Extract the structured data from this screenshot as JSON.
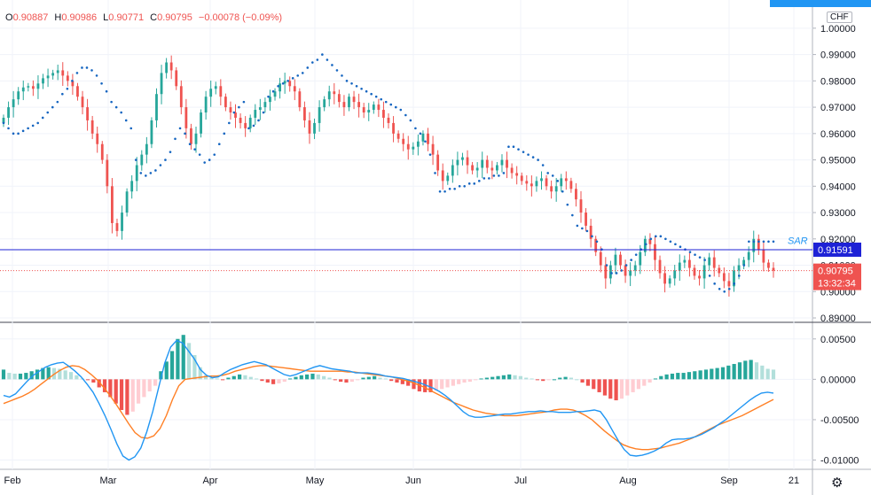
{
  "header": {
    "open_label": "O",
    "open": "0.90887",
    "high_label": "H",
    "high": "0.90986",
    "low_label": "L",
    "low": "0.90771",
    "close_label": "C",
    "close": "0.90795",
    "change": "−0.00078 (−0.09%)"
  },
  "currency_badge": "CHF",
  "settings_icon": "gear-icon",
  "colors": {
    "up": "#26a69a",
    "down": "#ef5350",
    "sar": "#1565c0",
    "hline": "#1e22d6",
    "macd": "#2196f3",
    "signal": "#ff7f24",
    "hist_up_strong": "#26a69a",
    "hist_up_weak": "#b2dfdb",
    "hist_down_strong": "#ef5350",
    "hist_down_weak": "#ffcdd2"
  },
  "chart_data": [
    {
      "type": "candlestick",
      "title": "",
      "ylim": [
        0.889,
        1.006
      ],
      "y_ticks": [
        "1.00000",
        "0.99000",
        "0.98000",
        "0.97000",
        "0.96000",
        "0.95000",
        "0.94000",
        "0.93000",
        "0.92000",
        "0.91000",
        "0.90000",
        "0.89000"
      ],
      "x_ticks": [
        "Feb",
        "Mar",
        "Apr",
        "May",
        "Jun",
        "Jul",
        "Aug",
        "Sep",
        "21"
      ],
      "sar_label": "SAR",
      "horizontal_line": {
        "value": 0.91591,
        "label": "0.91591"
      },
      "last_price": {
        "value": 0.90795,
        "label": "0.90795",
        "countdown": "13:32:34"
      },
      "close_series": [
        0.966,
        0.97,
        0.973,
        0.976,
        0.9775,
        0.978,
        0.977,
        0.979,
        0.981,
        0.982,
        0.983,
        0.984,
        0.982,
        0.98,
        0.978,
        0.974,
        0.97,
        0.965,
        0.96,
        0.956,
        0.95,
        0.94,
        0.926,
        0.923,
        0.93,
        0.938,
        0.942,
        0.948,
        0.952,
        0.956,
        0.965,
        0.975,
        0.983,
        0.987,
        0.984,
        0.978,
        0.97,
        0.962,
        0.956,
        0.96,
        0.968,
        0.974,
        0.977,
        0.978,
        0.974,
        0.97,
        0.968,
        0.966,
        0.964,
        0.962,
        0.966,
        0.969,
        0.97,
        0.972,
        0.974,
        0.976,
        0.979,
        0.98,
        0.978,
        0.976,
        0.97,
        0.965,
        0.96,
        0.964,
        0.97,
        0.973,
        0.976,
        0.975,
        0.972,
        0.97,
        0.974,
        0.972,
        0.97,
        0.968,
        0.969,
        0.971,
        0.969,
        0.966,
        0.964,
        0.96,
        0.958,
        0.956,
        0.954,
        0.955,
        0.957,
        0.96,
        0.956,
        0.952,
        0.946,
        0.942,
        0.944,
        0.948,
        0.95,
        0.951,
        0.948,
        0.946,
        0.947,
        0.95,
        0.947,
        0.946,
        0.948,
        0.95,
        0.947,
        0.945,
        0.944,
        0.942,
        0.941,
        0.94,
        0.942,
        0.943,
        0.94,
        0.938,
        0.94,
        0.943,
        0.942,
        0.939,
        0.935,
        0.93,
        0.925,
        0.92,
        0.915,
        0.91,
        0.905,
        0.91,
        0.914,
        0.91,
        0.906,
        0.908,
        0.91,
        0.915,
        0.92,
        0.918,
        0.912,
        0.907,
        0.903,
        0.905,
        0.908,
        0.911,
        0.912,
        0.909,
        0.906,
        0.905,
        0.91,
        0.913,
        0.909,
        0.907,
        0.904,
        0.902,
        0.908,
        0.91,
        0.912,
        0.915,
        0.92,
        0.916,
        0.911,
        0.909,
        0.90795
      ],
      "sar_series": [
        0.964,
        0.962,
        0.96,
        0.96,
        0.961,
        0.962,
        0.963,
        0.964,
        0.966,
        0.968,
        0.97,
        0.972,
        0.975,
        0.977,
        0.98,
        0.983,
        0.985,
        0.985,
        0.984,
        0.982,
        0.979,
        0.976,
        0.972,
        0.97,
        0.968,
        0.965,
        0.962,
        0.95,
        0.945,
        0.944,
        0.945,
        0.946,
        0.948,
        0.95,
        0.953,
        0.958,
        0.962,
        0.96,
        0.956,
        0.954,
        0.952,
        0.949,
        0.95,
        0.952,
        0.956,
        0.96,
        0.964,
        0.968,
        0.97,
        0.972,
        0.962,
        0.963,
        0.965,
        0.968,
        0.974,
        0.976,
        0.978,
        0.979,
        0.98,
        0.981,
        0.982,
        0.983,
        0.985,
        0.987,
        0.988,
        0.99,
        0.988,
        0.986,
        0.984,
        0.982,
        0.98,
        0.979,
        0.978,
        0.977,
        0.976,
        0.975,
        0.974,
        0.973,
        0.972,
        0.971,
        0.97,
        0.969,
        0.967,
        0.965,
        0.962,
        0.96,
        0.957,
        0.952,
        0.945,
        0.938,
        0.938,
        0.939,
        0.939,
        0.94,
        0.94,
        0.941,
        0.941,
        0.942,
        0.943,
        0.943,
        0.944,
        0.944,
        0.945,
        0.955,
        0.955,
        0.954,
        0.953,
        0.952,
        0.951,
        0.95,
        0.948,
        0.945,
        0.944,
        0.942,
        0.938,
        0.933,
        0.929,
        0.925,
        0.924,
        0.923,
        0.921,
        0.919,
        0.916,
        0.91,
        0.907,
        0.907,
        0.908,
        0.91,
        0.912,
        0.914,
        0.916,
        0.918,
        0.92,
        0.921,
        0.921,
        0.92,
        0.919,
        0.918,
        0.917,
        0.916,
        0.915,
        0.914,
        0.913,
        0.912,
        0.906,
        0.903,
        0.901,
        0.9,
        0.901,
        0.903,
        0.906,
        0.91,
        0.919,
        0.919,
        0.919,
        0.919,
        0.919,
        0.919
      ]
    },
    {
      "type": "macd",
      "ylim": [
        -0.0106,
        0.0064
      ],
      "y_ticks": [
        "0.00500",
        "0.00000",
        "-0.00500",
        "-0.01000"
      ],
      "macd_series": [
        -0.002,
        -0.0022,
        -0.0018,
        -0.001,
        -0.0002,
        0.0005,
        0.001,
        0.0015,
        0.0018,
        0.002,
        0.0021,
        0.0016,
        0.001,
        0.0003,
        -0.0006,
        -0.0016,
        -0.003,
        -0.0045,
        -0.0062,
        -0.008,
        -0.0095,
        -0.01,
        -0.0096,
        -0.0085,
        -0.0065,
        -0.004,
        -0.001,
        0.002,
        0.004,
        0.0048,
        0.0045,
        0.0035,
        0.0025,
        0.0012,
        0.0005,
        0.0002,
        0.0003,
        0.0008,
        0.0012,
        0.0015,
        0.0018,
        0.002,
        0.0022,
        0.002,
        0.0018,
        0.0014,
        0.001,
        0.0006,
        0.0004,
        0.0006,
        0.0009,
        0.0012,
        0.0015,
        0.0017,
        0.0015,
        0.0013,
        0.0012,
        0.0011,
        0.001,
        0.0008,
        0.0008,
        0.0008,
        0.0007,
        0.0006,
        0.0004,
        0.0003,
        0.0002,
        0.0001,
        -0.0001,
        -0.0003,
        -0.0005,
        -0.0008,
        -0.0011,
        -0.0015,
        -0.002,
        -0.0026,
        -0.0033,
        -0.004,
        -0.0045,
        -0.0047,
        -0.0047,
        -0.0046,
        -0.0045,
        -0.0044,
        -0.0043,
        -0.0043,
        -0.0042,
        -0.0041,
        -0.004,
        -0.004,
        -0.0039,
        -0.004,
        -0.004,
        -0.0041,
        -0.0041,
        -0.0041,
        -0.004,
        -0.004,
        -0.0039,
        -0.0038,
        -0.004,
        -0.005,
        -0.0063,
        -0.0076,
        -0.0087,
        -0.0094,
        -0.0095,
        -0.0094,
        -0.0092,
        -0.0089,
        -0.0085,
        -0.0079,
        -0.0075,
        -0.0074,
        -0.0074,
        -0.0073,
        -0.0071,
        -0.0068,
        -0.0064,
        -0.006,
        -0.0055,
        -0.005,
        -0.0044,
        -0.0038,
        -0.0032,
        -0.0026,
        -0.0021,
        -0.0017,
        -0.0016,
        -0.0017
      ],
      "signal_series": [
        -0.003,
        -0.0027,
        -0.0024,
        -0.0021,
        -0.0017,
        -0.0012,
        -0.0006,
        0.0,
        0.0006,
        0.0011,
        0.0015,
        0.0017,
        0.0016,
        0.0012,
        0.0006,
        -0.0001,
        -0.001,
        -0.002,
        -0.0031,
        -0.0043,
        -0.0055,
        -0.0066,
        -0.0072,
        -0.0073,
        -0.007,
        -0.0061,
        -0.0045,
        -0.0025,
        -0.0008,
        0.0,
        0.0001,
        0.0002,
        0.0003,
        0.0004,
        0.0004,
        0.0005,
        0.0007,
        0.001,
        0.0012,
        0.0014,
        0.0016,
        0.0017,
        0.0017,
        0.0016,
        0.0015,
        0.0014,
        0.0013,
        0.0012,
        0.0011,
        0.001,
        0.001,
        0.001,
        0.001,
        0.001,
        0.001,
        0.0009,
        0.0009,
        0.0008,
        0.0007,
        0.0006,
        0.0005,
        0.0004,
        0.0003,
        0.0001,
        -0.0001,
        -0.0003,
        -0.0006,
        -0.0009,
        -0.0013,
        -0.0017,
        -0.0021,
        -0.0025,
        -0.0029,
        -0.0032,
        -0.0035,
        -0.0038,
        -0.004,
        -0.0042,
        -0.0043,
        -0.0044,
        -0.0045,
        -0.0045,
        -0.0045,
        -0.0044,
        -0.0043,
        -0.0042,
        -0.0041,
        -0.004,
        -0.0038,
        -0.0037,
        -0.0037,
        -0.0038,
        -0.0041,
        -0.0045,
        -0.005,
        -0.0057,
        -0.0064,
        -0.007,
        -0.0076,
        -0.0081,
        -0.0084,
        -0.0086,
        -0.0087,
        -0.0087,
        -0.0086,
        -0.0085,
        -0.0083,
        -0.0081,
        -0.0079,
        -0.0076,
        -0.0073,
        -0.0069,
        -0.0065,
        -0.0061,
        -0.0057,
        -0.0054,
        -0.0051,
        -0.0048,
        -0.0045,
        -0.0041,
        -0.0037,
        -0.0033,
        -0.0029,
        -0.0025
      ],
      "histogram": [
        0.0012,
        0.0008,
        0.0007,
        0.0007,
        0.0008,
        0.001,
        0.0012,
        0.0014,
        0.0015,
        0.0014,
        0.0013,
        0.0011,
        0.0009,
        0.0005,
        0.0001,
        -0.0001,
        -0.0004,
        -0.001,
        -0.0016,
        -0.0022,
        -0.003,
        -0.0038,
        -0.0044,
        -0.004,
        -0.003,
        -0.0022,
        -0.0015,
        -0.0008,
        0.001,
        0.0022,
        0.0035,
        0.005,
        0.0055,
        0.0045,
        0.003,
        0.0015,
        0.0005,
        0.0002,
        0.0001,
        -0.0001,
        0.0002,
        0.0004,
        0.0006,
        0.0005,
        0.0003,
        0.0001,
        -0.0002,
        -0.0004,
        -0.0006,
        -0.0005,
        -0.0003,
        0.0001,
        0.0003,
        0.0005,
        0.0006,
        0.0007,
        0.0006,
        0.0004,
        0.0002,
        -0.0001,
        -0.0003,
        -0.0004,
        -0.0003,
        -0.0001,
        0.0002,
        0.0003,
        0.0004,
        0.0002,
        0.0001,
        -0.0002,
        -0.0004,
        -0.0006,
        -0.0008,
        -0.0012,
        -0.0015,
        -0.0016,
        -0.0016,
        -0.0014,
        -0.0012,
        -0.001,
        -0.0008,
        -0.0006,
        -0.0004,
        -0.0003,
        -0.0001,
        0.0001,
        0.0002,
        0.0003,
        0.0004,
        0.0005,
        0.0006,
        0.0005,
        0.0004,
        0.0002,
        0.0001,
        -0.0001,
        -0.0002,
        -0.0001,
        0.0,
        0.0002,
        0.0003,
        0.0002,
        0.0,
        -0.0004,
        -0.0008,
        -0.0012,
        -0.0016,
        -0.002,
        -0.0024,
        -0.0026,
        -0.0024,
        -0.002,
        -0.0016,
        -0.0012,
        -0.0008,
        -0.0004,
        0.0001,
        0.0004,
        0.0006,
        0.0007,
        0.0008,
        0.0008,
        0.0009,
        0.001,
        0.0011,
        0.0012,
        0.0013,
        0.0014,
        0.0015,
        0.0017,
        0.0019,
        0.0021,
        0.0023,
        0.0024,
        0.0021,
        0.0017,
        0.0013,
        0.0012
      ]
    }
  ]
}
